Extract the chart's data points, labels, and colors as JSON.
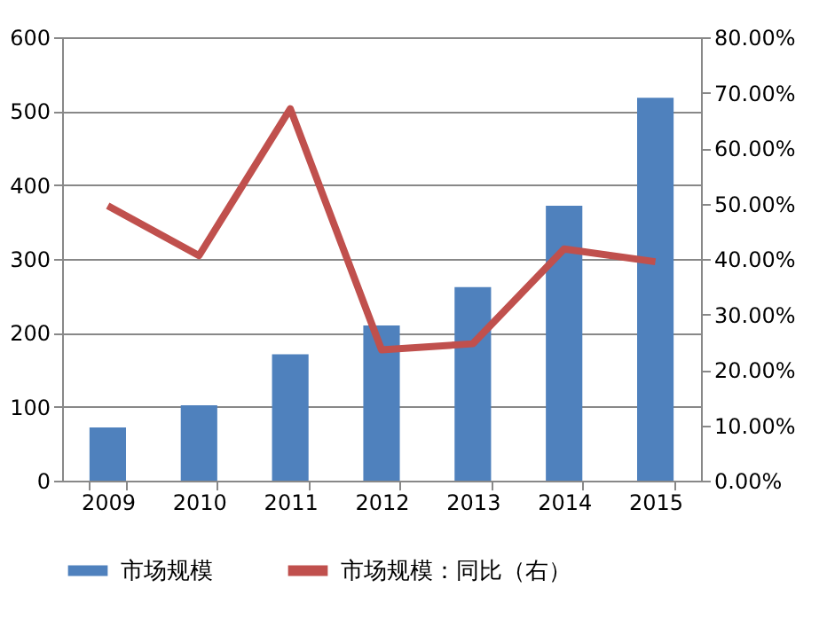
{
  "chart_data": {
    "type": "bar",
    "categories": [
      "2009",
      "2010",
      "2011",
      "2012",
      "2013",
      "2014",
      "2015"
    ],
    "series": [
      {
        "name": "市场规模",
        "color": "#4f81bd",
        "values": [
          72,
          102,
          171,
          210,
          262,
          372,
          518
        ]
      },
      {
        "name": "市场规模：同比（右）",
        "type": "line",
        "axis": "y2",
        "color": "#c0504d",
        "line_style": "solid",
        "values": [
          49.6,
          40.6,
          67.1,
          23.6,
          24.7,
          41.8,
          39.5
        ]
      }
    ],
    "ylim": [
      0,
      600
    ],
    "yticks": [
      0,
      100,
      200,
      300,
      400,
      500,
      600
    ],
    "y2lim": [
      0,
      80
    ],
    "y2ticks": [
      {
        "value": 0,
        "label": "0.00%"
      },
      {
        "value": 10,
        "label": "10.00%"
      },
      {
        "value": 20,
        "label": "20.00%"
      },
      {
        "value": 30,
        "label": "30.00%"
      },
      {
        "value": 40,
        "label": "40.00%"
      },
      {
        "value": 50,
        "label": "50.00%"
      },
      {
        "value": 60,
        "label": "60.00%"
      },
      {
        "value": 70,
        "label": "70.00%"
      },
      {
        "value": 80,
        "label": "80.00%"
      }
    ],
    "grid": "y",
    "legend": "bottom",
    "marker": "none"
  }
}
